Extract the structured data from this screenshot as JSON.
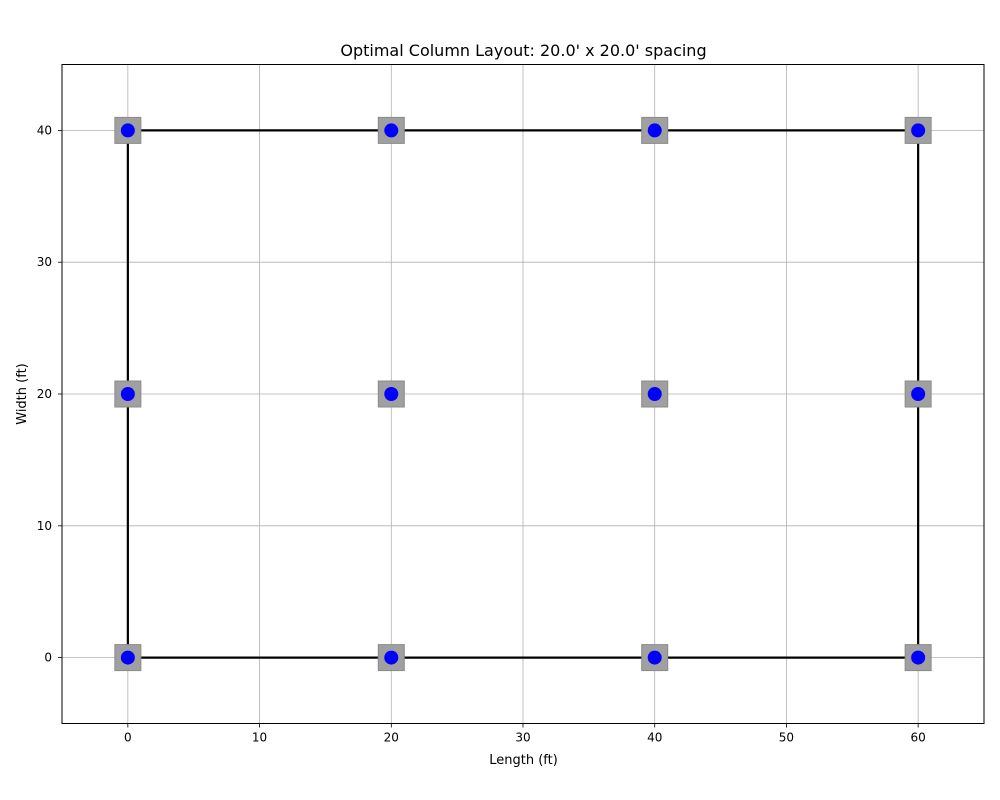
{
  "chart_data": {
    "type": "scatter",
    "title": "Optimal Column Layout: 20.0' x 20.0' spacing",
    "xlabel": "Length (ft)",
    "ylabel": "Width (ft)",
    "xlim": [
      -5,
      65
    ],
    "ylim": [
      -5,
      45
    ],
    "xticks": [
      0,
      10,
      20,
      30,
      40,
      50,
      60
    ],
    "yticks": [
      0,
      10,
      20,
      30,
      40
    ],
    "grid": true,
    "outline": {
      "x": [
        0,
        60,
        60,
        0,
        0
      ],
      "y": [
        0,
        0,
        40,
        40,
        0
      ],
      "color": "#000000"
    },
    "footings": {
      "color": "#a0a0a0",
      "points": [
        {
          "x": 0,
          "y": 0
        },
        {
          "x": 20,
          "y": 0
        },
        {
          "x": 40,
          "y": 0
        },
        {
          "x": 60,
          "y": 0
        },
        {
          "x": 0,
          "y": 20
        },
        {
          "x": 20,
          "y": 20
        },
        {
          "x": 40,
          "y": 20
        },
        {
          "x": 60,
          "y": 20
        },
        {
          "x": 0,
          "y": 40
        },
        {
          "x": 20,
          "y": 40
        },
        {
          "x": 40,
          "y": 40
        },
        {
          "x": 60,
          "y": 40
        }
      ]
    },
    "columns": {
      "color": "#0000ff",
      "points": [
        {
          "x": 0,
          "y": 0
        },
        {
          "x": 20,
          "y": 0
        },
        {
          "x": 40,
          "y": 0
        },
        {
          "x": 60,
          "y": 0
        },
        {
          "x": 0,
          "y": 20
        },
        {
          "x": 20,
          "y": 20
        },
        {
          "x": 40,
          "y": 20
        },
        {
          "x": 60,
          "y": 20
        },
        {
          "x": 0,
          "y": 40
        },
        {
          "x": 20,
          "y": 40
        },
        {
          "x": 40,
          "y": 40
        },
        {
          "x": 60,
          "y": 40
        }
      ]
    }
  }
}
